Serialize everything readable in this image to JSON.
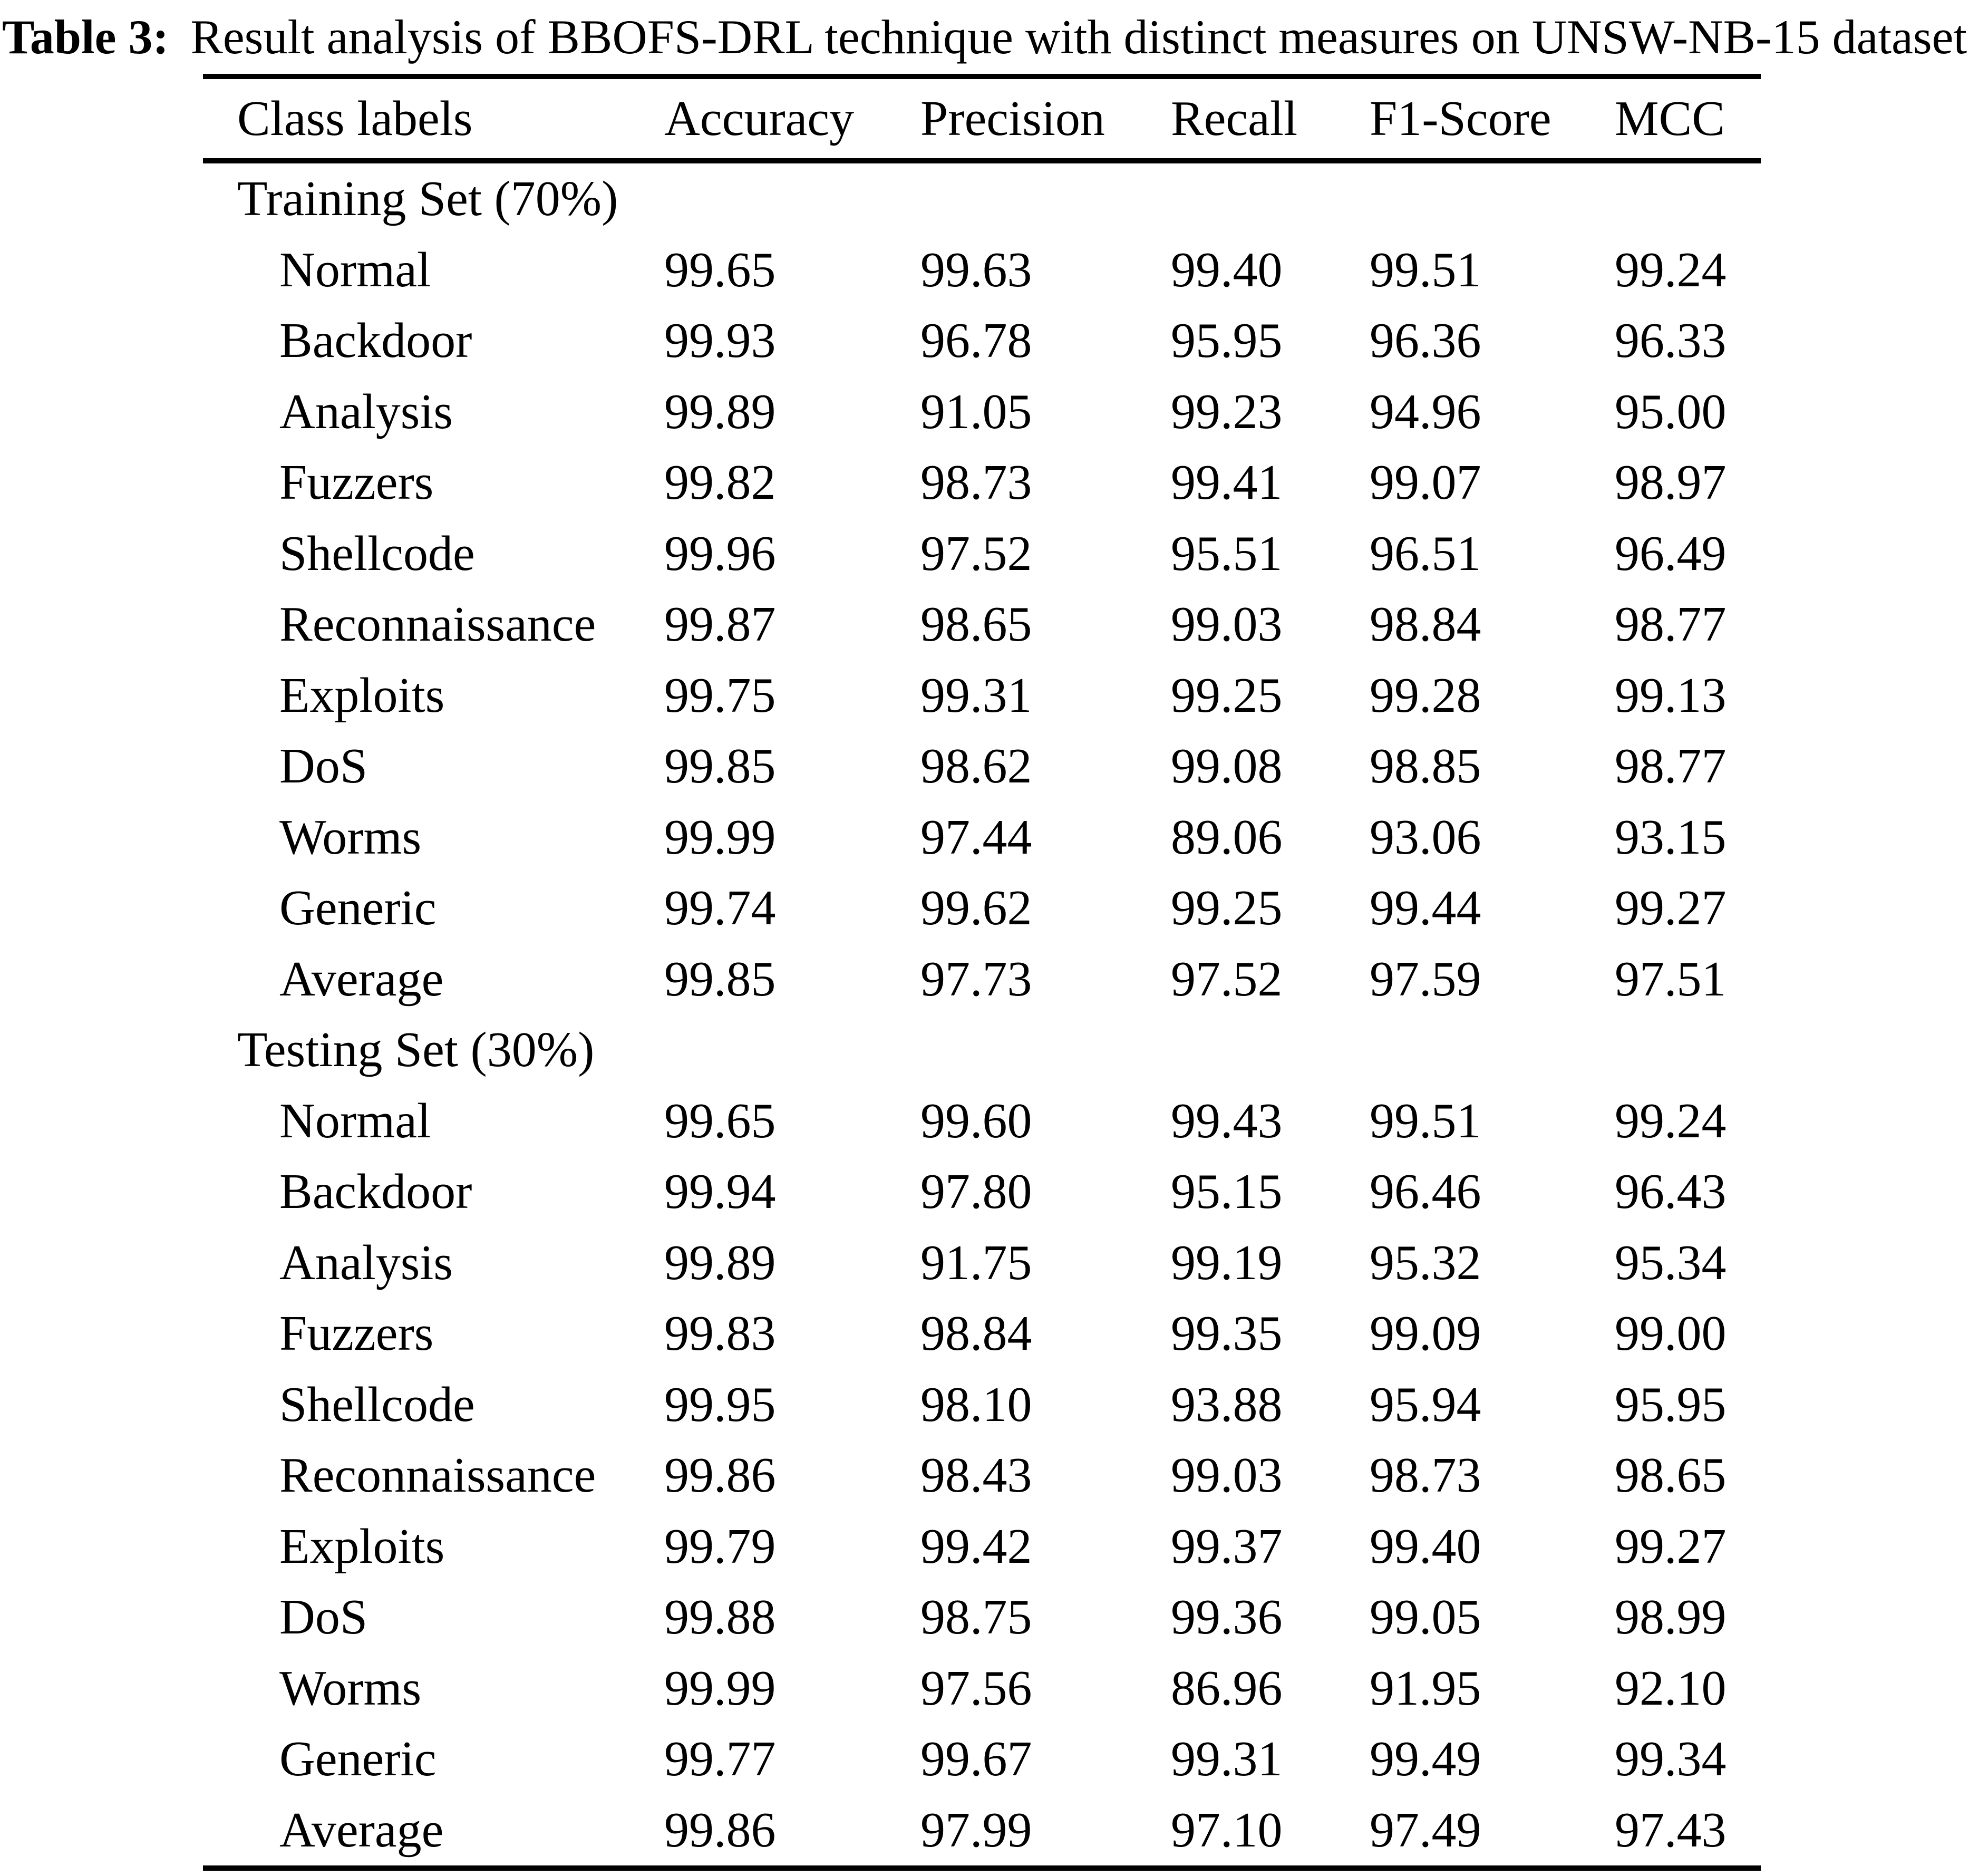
{
  "caption": {
    "label": "Table 3:",
    "text": "Result analysis of BBOFS-DRL technique with distinct measures on UNSW-NB-15 dataset"
  },
  "table": {
    "columns": [
      "Class labels",
      "Accuracy",
      "Precision",
      "Recall",
      "F1-Score",
      "MCC"
    ],
    "sections": [
      {
        "header": "Training Set (70%)",
        "rows": [
          {
            "label": "Normal",
            "values": [
              "99.65",
              "99.63",
              "99.40",
              "99.51",
              "99.24"
            ]
          },
          {
            "label": "Backdoor",
            "values": [
              "99.93",
              "96.78",
              "95.95",
              "96.36",
              "96.33"
            ]
          },
          {
            "label": "Analysis",
            "values": [
              "99.89",
              "91.05",
              "99.23",
              "94.96",
              "95.00"
            ]
          },
          {
            "label": "Fuzzers",
            "values": [
              "99.82",
              "98.73",
              "99.41",
              "99.07",
              "98.97"
            ]
          },
          {
            "label": "Shellcode",
            "values": [
              "99.96",
              "97.52",
              "95.51",
              "96.51",
              "96.49"
            ]
          },
          {
            "label": "Reconnaissance",
            "values": [
              "99.87",
              "98.65",
              "99.03",
              "98.84",
              "98.77"
            ]
          },
          {
            "label": "Exploits",
            "values": [
              "99.75",
              "99.31",
              "99.25",
              "99.28",
              "99.13"
            ]
          },
          {
            "label": "DoS",
            "values": [
              "99.85",
              "98.62",
              "99.08",
              "98.85",
              "98.77"
            ]
          },
          {
            "label": "Worms",
            "values": [
              "99.99",
              "97.44",
              "89.06",
              "93.06",
              "93.15"
            ]
          },
          {
            "label": "Generic",
            "values": [
              "99.74",
              "99.62",
              "99.25",
              "99.44",
              "99.27"
            ]
          },
          {
            "label": "Average",
            "values": [
              "99.85",
              "97.73",
              "97.52",
              "97.59",
              "97.51"
            ]
          }
        ]
      },
      {
        "header": "Testing Set (30%)",
        "rows": [
          {
            "label": "Normal",
            "values": [
              "99.65",
              "99.60",
              "99.43",
              "99.51",
              "99.24"
            ]
          },
          {
            "label": "Backdoor",
            "values": [
              "99.94",
              "97.80",
              "95.15",
              "96.46",
              "96.43"
            ]
          },
          {
            "label": "Analysis",
            "values": [
              "99.89",
              "91.75",
              "99.19",
              "95.32",
              "95.34"
            ]
          },
          {
            "label": "Fuzzers",
            "values": [
              "99.83",
              "98.84",
              "99.35",
              "99.09",
              "99.00"
            ]
          },
          {
            "label": "Shellcode",
            "values": [
              "99.95",
              "98.10",
              "93.88",
              "95.94",
              "95.95"
            ]
          },
          {
            "label": "Reconnaissance",
            "values": [
              "99.86",
              "98.43",
              "99.03",
              "98.73",
              "98.65"
            ]
          },
          {
            "label": "Exploits",
            "values": [
              "99.79",
              "99.42",
              "99.37",
              "99.40",
              "99.27"
            ]
          },
          {
            "label": "DoS",
            "values": [
              "99.88",
              "98.75",
              "99.36",
              "99.05",
              "98.99"
            ]
          },
          {
            "label": "Worms",
            "values": [
              "99.99",
              "97.56",
              "86.96",
              "91.95",
              "92.10"
            ]
          },
          {
            "label": "Generic",
            "values": [
              "99.77",
              "99.67",
              "99.31",
              "99.49",
              "99.34"
            ]
          },
          {
            "label": "Average",
            "values": [
              "99.86",
              "97.99",
              "97.10",
              "97.49",
              "97.43"
            ]
          }
        ]
      }
    ]
  }
}
